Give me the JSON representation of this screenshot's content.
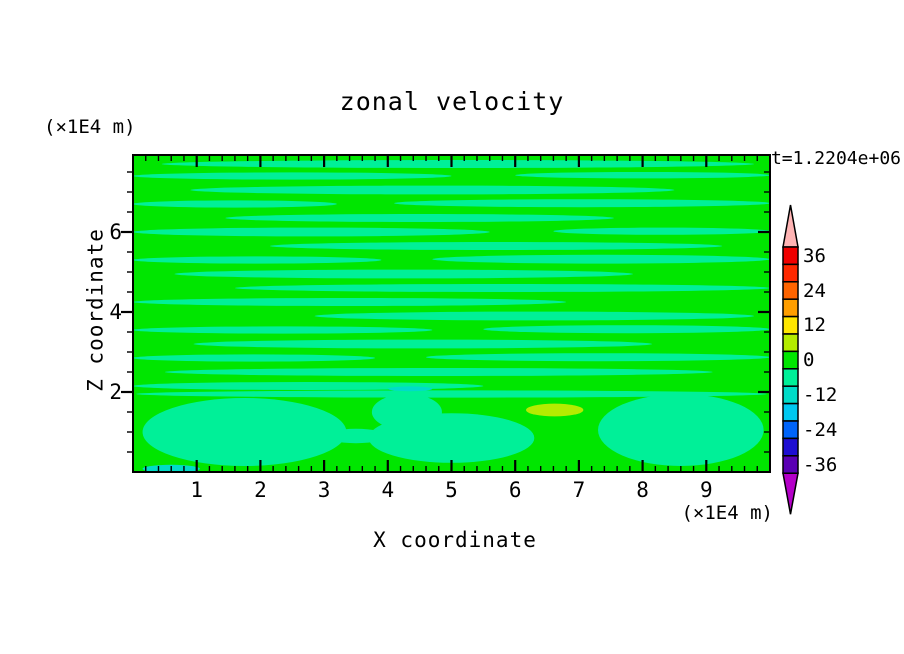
{
  "chart_data": {
    "type": "heatmap",
    "subtype": "filled-contour",
    "title": "zonal velocity",
    "annotation": "t=1.2204e+06",
    "xlabel": "X coordinate",
    "x_unit": "(×1E4 m)",
    "x_ticks": [
      1,
      2,
      3,
      4,
      5,
      6,
      7,
      8,
      9
    ],
    "x_minor_step": 0.2,
    "xlim": [
      0,
      10
    ],
    "ylabel": "Z coordinate",
    "y_unit": "(×1E4 m)",
    "y_ticks": [
      2,
      4,
      6
    ],
    "y_minor_step": 0.5,
    "ylim": [
      0,
      7.925
    ],
    "grid": false,
    "legend_position": "right-colorbar",
    "contour_interval": 6,
    "colorbar_labels": [
      "36",
      "24",
      "12",
      "0",
      "-12",
      "-24",
      "-36"
    ],
    "levels": [
      {
        "value": 36,
        "color": "#f00000"
      },
      {
        "value": 30,
        "color": "#ff2800"
      },
      {
        "value": 24,
        "color": "#ff6400"
      },
      {
        "value": 18,
        "color": "#ff9e00"
      },
      {
        "value": 12,
        "color": "#ffe600"
      },
      {
        "value": 6,
        "color": "#b4ec00"
      },
      {
        "value": 0,
        "color": "#00e600"
      },
      {
        "value": -6,
        "color": "#00f098"
      },
      {
        "value": -12,
        "color": "#00dcc8"
      },
      {
        "value": -18,
        "color": "#00c8f0"
      },
      {
        "value": -24,
        "color": "#0064fa"
      },
      {
        "value": -30,
        "color": "#1e0ed2"
      },
      {
        "value": -36,
        "color": "#5a00b4"
      }
    ],
    "over_color": "#ffb4b4",
    "under_color": "#b400c8",
    "outline_color": "#000000",
    "background_level": 0,
    "features_note": "approximate contour bands: [x, z, rx, rz, level_value]",
    "features": [
      [
        5.1,
        7.7,
        4.65,
        0.1,
        -6
      ],
      [
        2.5,
        7.4,
        2.5,
        0.09,
        -6
      ],
      [
        8.0,
        7.42,
        2.0,
        0.08,
        -6
      ],
      [
        4.7,
        7.05,
        3.8,
        0.11,
        -6
      ],
      [
        1.6,
        6.7,
        1.6,
        0.09,
        -6
      ],
      [
        7.05,
        6.72,
        2.95,
        0.1,
        -6
      ],
      [
        4.5,
        6.35,
        3.05,
        0.1,
        -6
      ],
      [
        2.8,
        6.0,
        2.8,
        0.11,
        -6
      ],
      [
        8.3,
        6.02,
        1.7,
        0.09,
        -6
      ],
      [
        5.7,
        5.65,
        3.55,
        0.1,
        -6
      ],
      [
        1.95,
        5.3,
        1.95,
        0.09,
        -6
      ],
      [
        7.35,
        5.32,
        2.65,
        0.11,
        -6
      ],
      [
        4.25,
        4.95,
        3.6,
        0.11,
        -6
      ],
      [
        5.8,
        4.6,
        4.2,
        0.1,
        -6
      ],
      [
        3.4,
        4.25,
        3.4,
        0.1,
        -6
      ],
      [
        6.3,
        3.9,
        3.45,
        0.11,
        -6
      ],
      [
        2.35,
        3.55,
        2.35,
        0.09,
        -6
      ],
      [
        7.75,
        3.57,
        2.25,
        0.1,
        -6
      ],
      [
        4.55,
        3.2,
        3.6,
        0.11,
        -6
      ],
      [
        1.9,
        2.85,
        1.9,
        0.09,
        -6
      ],
      [
        7.3,
        2.87,
        2.7,
        0.1,
        -6
      ],
      [
        4.8,
        2.5,
        4.3,
        0.1,
        -6
      ],
      [
        2.75,
        2.15,
        2.75,
        0.1,
        -6
      ],
      [
        5.0,
        1.95,
        4.95,
        0.09,
        -6
      ],
      [
        1.75,
        1.0,
        1.6,
        0.85,
        -6
      ],
      [
        3.5,
        0.9,
        0.5,
        0.18,
        -6
      ],
      [
        5.0,
        0.85,
        1.3,
        0.62,
        -6
      ],
      [
        4.3,
        1.5,
        0.55,
        0.45,
        -6
      ],
      [
        8.6,
        1.05,
        1.3,
        0.9,
        -6
      ],
      [
        6.62,
        1.55,
        0.45,
        0.16,
        6
      ],
      [
        0.6,
        0.08,
        0.45,
        0.1,
        -12
      ],
      [
        4.35,
        2.08,
        0.35,
        0.06,
        -12
      ]
    ]
  }
}
